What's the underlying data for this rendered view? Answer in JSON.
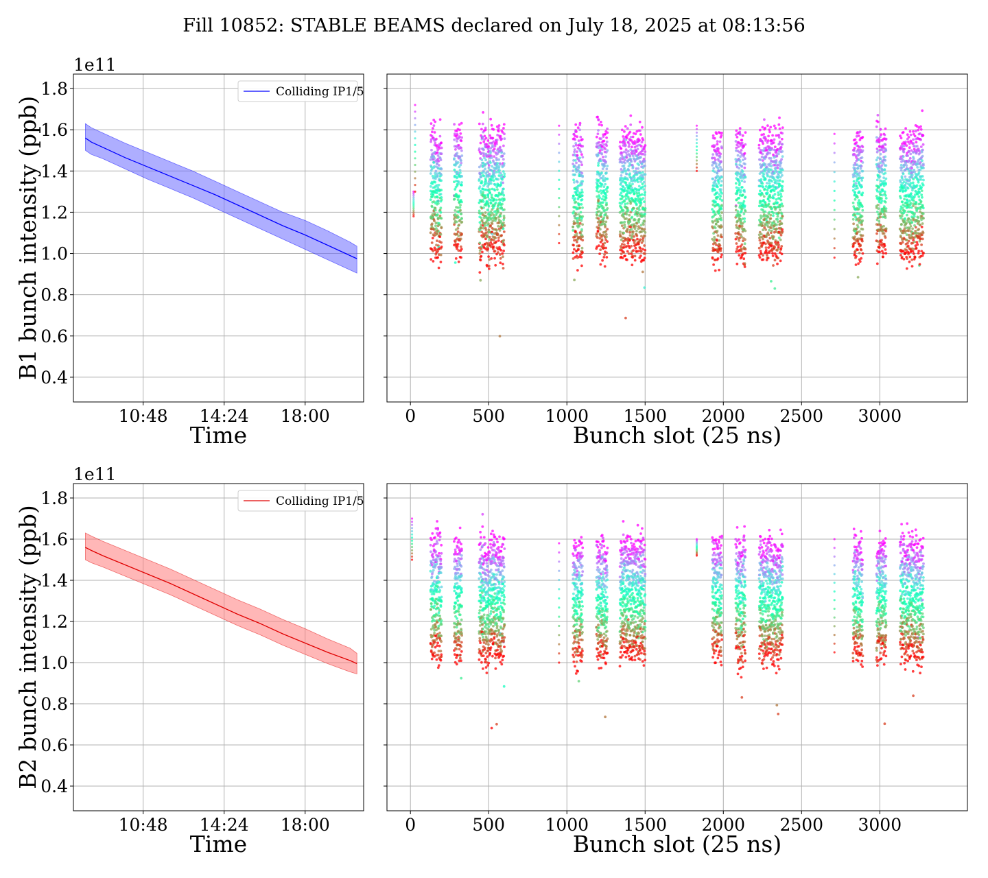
{
  "title": "Fill 10852: STABLE BEAMS declared on July 18, 2025 at 08:13:56",
  "colors": {
    "b1_line": "#0000ff",
    "b1_band": "#6b6bff",
    "b2_line": "#e00000",
    "b2_band": "#ff7b7b",
    "grid": "#b0b0b0"
  },
  "chart_data": [
    {
      "id": "b1-time",
      "type": "line",
      "xlabel": "Time",
      "ylabel": "B1 bunch intensity (ppb)",
      "y_multiplier": "1e11",
      "x_tick_labels": [
        "10:48",
        "14:24",
        "18:00"
      ],
      "x_ticks_hours": [
        10.8,
        14.4,
        18.0
      ],
      "xlim_hours": [
        7.7,
        20.6
      ],
      "ylim": [
        0.28,
        1.87
      ],
      "y_ticks": [
        0.4,
        0.6,
        0.8,
        1.0,
        1.2,
        1.4,
        1.6,
        1.8
      ],
      "grid": true,
      "legend": {
        "entries": [
          "Colliding IP1/5"
        ],
        "placement": "upper right"
      },
      "series": [
        {
          "name": "Colliding IP1/5",
          "x_hours": [
            8.23,
            8.5,
            9.0,
            10.0,
            11.0,
            12.0,
            13.0,
            14.0,
            15.0,
            16.0,
            17.0,
            18.0,
            19.0,
            20.0,
            20.3
          ],
          "mean": [
            1.56,
            1.54,
            1.515,
            1.465,
            1.42,
            1.375,
            1.33,
            1.285,
            1.235,
            1.185,
            1.135,
            1.09,
            1.04,
            0.99,
            0.975
          ],
          "lower": [
            1.5,
            1.48,
            1.46,
            1.41,
            1.36,
            1.315,
            1.27,
            1.22,
            1.17,
            1.12,
            1.07,
            1.02,
            0.97,
            0.92,
            0.905
          ],
          "upper": [
            1.63,
            1.61,
            1.585,
            1.535,
            1.49,
            1.445,
            1.4,
            1.35,
            1.3,
            1.25,
            1.2,
            1.16,
            1.11,
            1.055,
            1.035
          ]
        }
      ]
    },
    {
      "id": "b1-slot",
      "type": "scatter",
      "xlabel": "Bunch slot (25 ns)",
      "xlim": [
        -150,
        3560
      ],
      "x_ticks": [
        0,
        500,
        1000,
        1500,
        2000,
        2500,
        3000
      ],
      "ylim": [
        0.28,
        1.87
      ],
      "grid": true,
      "colormap": "rainbow (red = earliest / highest intensity? no: color encodes time, red = end of fill, violet = start)",
      "trains": [
        [
          130,
          200
        ],
        [
          280,
          330
        ],
        [
          440,
          600
        ],
        [
          1040,
          1100
        ],
        [
          1190,
          1260
        ],
        [
          1340,
          1500
        ],
        [
          1930,
          1990
        ],
        [
          2080,
          2140
        ],
        [
          2230,
          2380
        ],
        [
          2830,
          2890
        ],
        [
          2980,
          3040
        ],
        [
          3130,
          3280
        ]
      ],
      "isolated_bunches": [
        [
          20,
          1.18,
          1.3
        ],
        [
          30,
          1.3,
          1.72
        ],
        [
          950,
          1.05,
          1.62
        ],
        [
          1830,
          1.4,
          1.62
        ],
        [
          2710,
          0.98,
          1.58
        ]
      ],
      "y_start": 1.56,
      "y_end": 1.01,
      "spread": 0.06
    },
    {
      "id": "b2-time",
      "type": "line",
      "xlabel": "Time",
      "ylabel": "B2 bunch intensity (ppb)",
      "y_multiplier": "1e11",
      "x_tick_labels": [
        "10:48",
        "14:24",
        "18:00"
      ],
      "x_ticks_hours": [
        10.8,
        14.4,
        18.0
      ],
      "xlim_hours": [
        7.7,
        20.6
      ],
      "ylim": [
        0.28,
        1.87
      ],
      "y_ticks": [
        0.4,
        0.6,
        0.8,
        1.0,
        1.2,
        1.4,
        1.6,
        1.8
      ],
      "grid": true,
      "legend": {
        "entries": [
          "Colliding IP1/5"
        ],
        "placement": "upper right"
      },
      "series": [
        {
          "name": "Colliding IP1/5",
          "x_hours": [
            8.23,
            8.5,
            9.0,
            10.0,
            11.0,
            12.0,
            13.0,
            14.0,
            15.0,
            16.0,
            17.0,
            18.0,
            19.0,
            20.0,
            20.3
          ],
          "mean": [
            1.56,
            1.545,
            1.52,
            1.475,
            1.43,
            1.385,
            1.335,
            1.285,
            1.235,
            1.19,
            1.14,
            1.095,
            1.05,
            1.01,
            0.995
          ],
          "lower": [
            1.5,
            1.485,
            1.465,
            1.42,
            1.375,
            1.33,
            1.28,
            1.23,
            1.18,
            1.135,
            1.085,
            1.04,
            0.995,
            0.955,
            0.945
          ],
          "upper": [
            1.63,
            1.615,
            1.59,
            1.545,
            1.5,
            1.455,
            1.405,
            1.355,
            1.305,
            1.26,
            1.21,
            1.165,
            1.115,
            1.07,
            1.045
          ]
        }
      ]
    },
    {
      "id": "b2-slot",
      "type": "scatter",
      "xlabel": "Bunch slot (25 ns)",
      "xlim": [
        -150,
        3560
      ],
      "x_ticks": [
        0,
        500,
        1000,
        1500,
        2000,
        2500,
        3000
      ],
      "ylim": [
        0.28,
        1.87
      ],
      "grid": true,
      "trains": [
        [
          130,
          200
        ],
        [
          280,
          330
        ],
        [
          440,
          600
        ],
        [
          1040,
          1100
        ],
        [
          1190,
          1260
        ],
        [
          1340,
          1500
        ],
        [
          1930,
          1990
        ],
        [
          2080,
          2140
        ],
        [
          2230,
          2380
        ],
        [
          2830,
          2890
        ],
        [
          2980,
          3040
        ],
        [
          3130,
          3280
        ]
      ],
      "isolated_bunches": [
        [
          10,
          1.5,
          1.7
        ],
        [
          950,
          1.0,
          1.58
        ],
        [
          1830,
          1.52,
          1.6
        ],
        [
          2710,
          1.05,
          1.6
        ]
      ],
      "y_start": 1.57,
      "y_end": 1.04,
      "spread": 0.06
    }
  ]
}
